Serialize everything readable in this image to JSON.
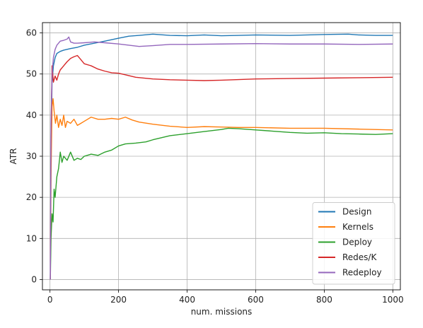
{
  "chart_data": {
    "type": "line",
    "title": "",
    "xlabel": "num. missions",
    "ylabel": "ATR",
    "xlim": [
      -22,
      1022
    ],
    "ylim": [
      -2.5,
      62.5
    ],
    "xticks": [
      0,
      200,
      400,
      600,
      800,
      1000
    ],
    "yticks": [
      0,
      10,
      20,
      30,
      40,
      50,
      60
    ],
    "grid": true,
    "legend_position": "lower-right",
    "series": [
      {
        "name": "Design",
        "color": "#1f77b4",
        "points": [
          [
            1,
            0
          ],
          [
            3,
            30
          ],
          [
            6,
            48
          ],
          [
            10,
            52
          ],
          [
            15,
            54
          ],
          [
            20,
            55
          ],
          [
            30,
            55.5
          ],
          [
            40,
            55.8
          ],
          [
            60,
            56.2
          ],
          [
            80,
            56.5
          ],
          [
            100,
            57
          ],
          [
            130,
            57.5
          ],
          [
            160,
            58
          ],
          [
            200,
            58.7
          ],
          [
            230,
            59.2
          ],
          [
            260,
            59.4
          ],
          [
            300,
            59.7
          ],
          [
            350,
            59.4
          ],
          [
            400,
            59.3
          ],
          [
            450,
            59.5
          ],
          [
            500,
            59.3
          ],
          [
            550,
            59.4
          ],
          [
            600,
            59.5
          ],
          [
            700,
            59.4
          ],
          [
            800,
            59.6
          ],
          [
            870,
            59.7
          ],
          [
            900,
            59.5
          ],
          [
            950,
            59.4
          ],
          [
            1000,
            59.4
          ]
        ]
      },
      {
        "name": "Kernels",
        "color": "#ff7f0e",
        "points": [
          [
            1,
            0
          ],
          [
            3,
            25
          ],
          [
            6,
            42
          ],
          [
            9,
            44
          ],
          [
            12,
            41
          ],
          [
            16,
            38
          ],
          [
            20,
            40
          ],
          [
            25,
            37
          ],
          [
            30,
            39
          ],
          [
            35,
            37.5
          ],
          [
            40,
            40
          ],
          [
            45,
            37
          ],
          [
            50,
            38.5
          ],
          [
            60,
            38
          ],
          [
            70,
            39
          ],
          [
            80,
            37.5
          ],
          [
            90,
            38
          ],
          [
            100,
            38.5
          ],
          [
            120,
            39.5
          ],
          [
            140,
            39
          ],
          [
            160,
            39
          ],
          [
            180,
            39.2
          ],
          [
            200,
            39
          ],
          [
            220,
            39.5
          ],
          [
            240,
            38.8
          ],
          [
            260,
            38.3
          ],
          [
            300,
            37.8
          ],
          [
            350,
            37.3
          ],
          [
            400,
            37
          ],
          [
            450,
            37.2
          ],
          [
            500,
            37.1
          ],
          [
            550,
            37
          ],
          [
            600,
            37
          ],
          [
            700,
            36.8
          ],
          [
            800,
            36.8
          ],
          [
            900,
            36.6
          ],
          [
            1000,
            36.4
          ]
        ]
      },
      {
        "name": "Deploy",
        "color": "#2ca02c",
        "points": [
          [
            1,
            0
          ],
          [
            3,
            10
          ],
          [
            6,
            16
          ],
          [
            9,
            14
          ],
          [
            12,
            22
          ],
          [
            15,
            20
          ],
          [
            20,
            25
          ],
          [
            25,
            27
          ],
          [
            30,
            31
          ],
          [
            35,
            28.5
          ],
          [
            40,
            30
          ],
          [
            50,
            29
          ],
          [
            60,
            31
          ],
          [
            70,
            29
          ],
          [
            80,
            29.5
          ],
          [
            90,
            29.2
          ],
          [
            100,
            30
          ],
          [
            120,
            30.5
          ],
          [
            140,
            30.2
          ],
          [
            160,
            31
          ],
          [
            180,
            31.5
          ],
          [
            200,
            32.5
          ],
          [
            220,
            33
          ],
          [
            250,
            33.2
          ],
          [
            280,
            33.5
          ],
          [
            300,
            34
          ],
          [
            350,
            35
          ],
          [
            400,
            35.5
          ],
          [
            450,
            36
          ],
          [
            500,
            36.5
          ],
          [
            520,
            36.8
          ],
          [
            550,
            36.7
          ],
          [
            600,
            36.4
          ],
          [
            650,
            36.1
          ],
          [
            700,
            35.8
          ],
          [
            750,
            35.6
          ],
          [
            800,
            35.7
          ],
          [
            850,
            35.5
          ],
          [
            900,
            35.4
          ],
          [
            950,
            35.3
          ],
          [
            1000,
            35.5
          ]
        ]
      },
      {
        "name": "Redes/K",
        "color": "#d62728",
        "points": [
          [
            1,
            0
          ],
          [
            3,
            35
          ],
          [
            6,
            52
          ],
          [
            10,
            48
          ],
          [
            15,
            49.5
          ],
          [
            20,
            48.5
          ],
          [
            25,
            50
          ],
          [
            30,
            51
          ],
          [
            40,
            52
          ],
          [
            50,
            53
          ],
          [
            60,
            53.8
          ],
          [
            70,
            54.2
          ],
          [
            80,
            54.5
          ],
          [
            90,
            53.5
          ],
          [
            100,
            52.5
          ],
          [
            120,
            52
          ],
          [
            140,
            51.2
          ],
          [
            160,
            50.7
          ],
          [
            180,
            50.3
          ],
          [
            200,
            50.2
          ],
          [
            220,
            49.8
          ],
          [
            250,
            49.2
          ],
          [
            300,
            48.8
          ],
          [
            350,
            48.6
          ],
          [
            400,
            48.5
          ],
          [
            450,
            48.4
          ],
          [
            500,
            48.5
          ],
          [
            600,
            48.8
          ],
          [
            700,
            48.9
          ],
          [
            800,
            49.0
          ],
          [
            900,
            49.1
          ],
          [
            1000,
            49.2
          ]
        ]
      },
      {
        "name": "Redeploy",
        "color": "#9467bd",
        "points": [
          [
            1,
            0
          ],
          [
            3,
            38
          ],
          [
            6,
            50
          ],
          [
            10,
            54
          ],
          [
            15,
            56
          ],
          [
            20,
            57
          ],
          [
            25,
            57.5
          ],
          [
            30,
            58
          ],
          [
            40,
            58.2
          ],
          [
            50,
            58.5
          ],
          [
            55,
            59
          ],
          [
            60,
            57.8
          ],
          [
            70,
            57.5
          ],
          [
            80,
            57.5
          ],
          [
            100,
            57.6
          ],
          [
            130,
            57.8
          ],
          [
            160,
            57.6
          ],
          [
            200,
            57.3
          ],
          [
            230,
            57
          ],
          [
            260,
            56.7
          ],
          [
            300,
            56.9
          ],
          [
            350,
            57.2
          ],
          [
            400,
            57.2
          ],
          [
            500,
            57.3
          ],
          [
            600,
            57.4
          ],
          [
            700,
            57.3
          ],
          [
            800,
            57.3
          ],
          [
            900,
            57.2
          ],
          [
            1000,
            57.3
          ]
        ]
      }
    ]
  }
}
